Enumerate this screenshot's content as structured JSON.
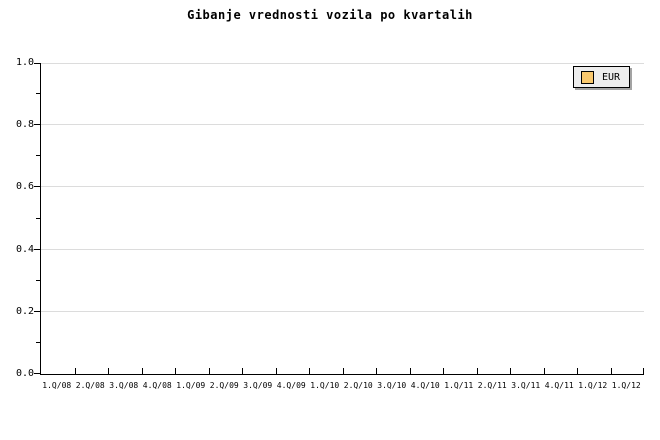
{
  "title": "Gibanje vrednosti vozila po kvartalih",
  "legend": {
    "position": "top-right",
    "items": [
      {
        "label": "EUR",
        "swatch_color": "#f9c86d"
      }
    ]
  },
  "colors": {
    "background": "#ffffff",
    "axis": "#000000",
    "gridline": "#dcdcdc",
    "legend_background": "#ededed",
    "legend_shadow": "#a3a3a3",
    "series_eur": "#f9c86d"
  },
  "chart_data": {
    "type": "line",
    "title": "Gibanje vrednosti vozila po kvartalih",
    "categories": [
      "1.Q/08",
      "2.Q/08",
      "3.Q/08",
      "4.Q/08",
      "1.Q/09",
      "2.Q/09",
      "3.Q/09",
      "4.Q/09",
      "1.Q/10",
      "2.Q/10",
      "3.Q/10",
      "4.Q/10",
      "1.Q/11",
      "2.Q/11",
      "3.Q/11",
      "4.Q/11",
      "1.Q/12",
      "1.Q/12"
    ],
    "series": [
      {
        "name": "EUR",
        "values": []
      }
    ],
    "xlabel": "",
    "ylabel": "",
    "ylim": [
      0.0,
      1.0
    ],
    "yticks": [
      0.0,
      0.2,
      0.4,
      0.6,
      0.8,
      1.0
    ],
    "y_minor_ticks": [
      0.1,
      0.3,
      0.5,
      0.7,
      0.9
    ],
    "grid": "horizontal",
    "legend_position": "top-right",
    "note": "empty plot area - no data points rendered"
  }
}
